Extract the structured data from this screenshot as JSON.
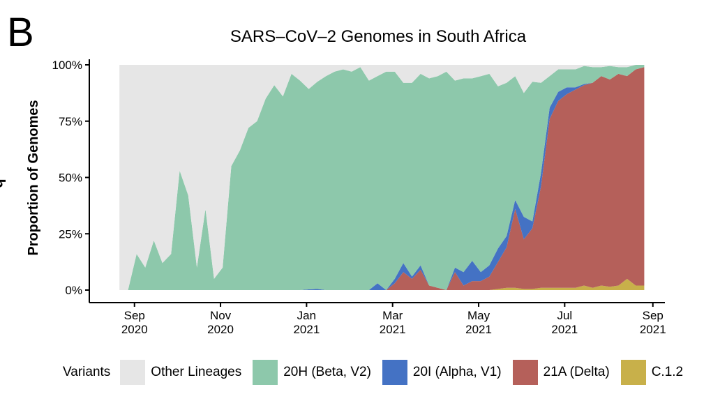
{
  "panel_label": "B",
  "edge_fragment": "q",
  "chart_data": {
    "type": "area",
    "stacked": true,
    "normalized": true,
    "title": "SARS–CoV–2 Genomes in South Africa",
    "ylabel": "Proportion of Genomes",
    "xlabel": "",
    "ylim": [
      0,
      1
    ],
    "y_ticks": [
      0,
      0.25,
      0.5,
      0.75,
      1.0
    ],
    "y_tick_labels": [
      "0%",
      "25%",
      "50%",
      "75%",
      "100%"
    ],
    "x_tick_values": [
      6.0,
      8.0,
      10.0,
      12.0,
      14.0,
      16.0
    ],
    "x_tick_labels": [
      [
        "Sep",
        "2020"
      ],
      [
        "Nov",
        "2020"
      ],
      [
        "Jan",
        "2021"
      ],
      [
        "Mar",
        "2021"
      ],
      [
        "May",
        "2021"
      ],
      [
        "Jul",
        "2021"
      ],
      [
        "Sep",
        "2021"
      ]
    ],
    "x_tick_months": [
      5.95,
      7.95,
      9.95,
      11.95,
      13.95,
      15.95,
      18.0
    ],
    "xlim": [
      4.9,
      18.15
    ],
    "x": [
      5.6,
      5.8,
      6.0,
      6.2,
      6.4,
      6.6,
      6.8,
      7.0,
      7.2,
      7.4,
      7.6,
      7.8,
      8.0,
      8.2,
      8.4,
      8.6,
      8.8,
      9.0,
      9.2,
      9.4,
      9.6,
      9.8,
      10.0,
      10.2,
      10.4,
      10.6,
      10.8,
      11.0,
      11.2,
      11.4,
      11.6,
      11.8,
      12.0,
      12.2,
      12.4,
      12.6,
      12.8,
      13.0,
      13.2,
      13.4,
      13.6,
      13.8,
      14.0,
      14.2,
      14.4,
      14.6,
      14.8,
      15.0,
      15.2,
      15.4,
      15.6,
      15.8,
      16.0,
      16.2,
      16.4,
      16.6,
      16.8,
      17.0,
      17.2,
      17.4,
      17.6,
      17.8
    ],
    "legend_title": "Variants",
    "legend_position": "bottom",
    "series": [
      {
        "name": "C.1.2",
        "color": "#c8b04a",
        "values": [
          0,
          0,
          0,
          0,
          0,
          0,
          0,
          0,
          0,
          0,
          0,
          0,
          0,
          0,
          0,
          0,
          0,
          0,
          0,
          0,
          0,
          0,
          0,
          0,
          0,
          0,
          0,
          0,
          0,
          0,
          0,
          0,
          0,
          0,
          0,
          0,
          0,
          0,
          0,
          0,
          0,
          0,
          0,
          0,
          0.005,
          0.01,
          0.01,
          0.005,
          0.005,
          0.01,
          0.01,
          0.01,
          0.01,
          0.01,
          0.02,
          0.01,
          0.02,
          0.015,
          0.02,
          0.05,
          0.02,
          0.02
        ]
      },
      {
        "name": "21A (Delta)",
        "color": "#b5605a",
        "values": [
          0,
          0,
          0,
          0,
          0,
          0,
          0,
          0,
          0,
          0,
          0,
          0,
          0,
          0,
          0,
          0,
          0,
          0,
          0,
          0,
          0,
          0,
          0,
          0,
          0,
          0,
          0,
          0,
          0,
          0,
          0,
          0,
          0.03,
          0.08,
          0.05,
          0.09,
          0.02,
          0.01,
          0,
          0.08,
          0.02,
          0.04,
          0.04,
          0.06,
          0.12,
          0.18,
          0.35,
          0.22,
          0.27,
          0.45,
          0.75,
          0.83,
          0.86,
          0.88,
          0.89,
          0.91,
          0.93,
          0.92,
          0.94,
          0.9,
          0.96,
          0.97
        ]
      },
      {
        "name": "20I (Alpha, V1)",
        "color": "#4472c4",
        "values": [
          0,
          0,
          0,
          0,
          0,
          0,
          0,
          0,
          0,
          0,
          0,
          0,
          0,
          0,
          0,
          0,
          0,
          0,
          0,
          0,
          0,
          0,
          0.003,
          0.005,
          0,
          0,
          0,
          0,
          0,
          0,
          0.03,
          0,
          0.02,
          0.04,
          0.01,
          0.02,
          0,
          0,
          0,
          0.02,
          0.06,
          0.09,
          0.04,
          0.05,
          0.06,
          0.05,
          0.04,
          0.1,
          0.03,
          0.06,
          0.05,
          0.04,
          0.03,
          0.01,
          0.005,
          0,
          0,
          0,
          0,
          0,
          0,
          0
        ]
      },
      {
        "name": "20H (Beta, V2)",
        "color": "#8dc8ab",
        "values": [
          0,
          0,
          0.16,
          0.1,
          0.22,
          0.12,
          0.16,
          0.53,
          0.42,
          0.1,
          0.36,
          0.05,
          0.1,
          0.55,
          0.62,
          0.72,
          0.75,
          0.85,
          0.91,
          0.86,
          0.96,
          0.93,
          0.89,
          0.92,
          0.95,
          0.97,
          0.98,
          0.97,
          0.99,
          0.93,
          0.92,
          0.97,
          0.92,
          0.8,
          0.86,
          0.85,
          0.92,
          0.94,
          0.97,
          0.83,
          0.86,
          0.81,
          0.87,
          0.85,
          0.72,
          0.68,
          0.55,
          0.55,
          0.62,
          0.4,
          0.14,
          0.1,
          0.08,
          0.08,
          0.08,
          0.07,
          0.04,
          0.06,
          0.03,
          0.04,
          0.02,
          0.01
        ]
      },
      {
        "name": "Other Lineages",
        "color": "#e6e6e6",
        "fill_rest": true,
        "values": [
          1,
          1,
          0.84,
          0.9,
          0.78,
          0.88,
          0.84,
          0.47,
          0.58,
          0.9,
          0.64,
          0.95,
          0.9,
          0.45,
          0.38,
          0.28,
          0.25,
          0.15,
          0.09,
          0.14,
          0.04,
          0.07,
          0.107,
          0.075,
          0.05,
          0.03,
          0.02,
          0.03,
          0.01,
          0.07,
          0.05,
          0.03,
          0.03,
          0.08,
          0.08,
          0.04,
          0.06,
          0.05,
          0.03,
          0.07,
          0.06,
          0.06,
          0.05,
          0.04,
          0.095,
          0.08,
          0.05,
          0.125,
          0.075,
          0.08,
          0.04,
          0.02,
          0.02,
          0.02,
          0.005,
          0.01,
          0.01,
          0.005,
          0.01,
          0.01,
          0.01,
          0
        ]
      }
    ],
    "legend_items": [
      {
        "label": "Other Lineages",
        "color": "#e6e6e6"
      },
      {
        "label": "20H (Beta, V2)",
        "color": "#8dc8ab"
      },
      {
        "label": "20I (Alpha, V1)",
        "color": "#4472c4"
      },
      {
        "label": "21A (Delta)",
        "color": "#b5605a"
      },
      {
        "label": "C.1.2",
        "color": "#c8b04a"
      }
    ]
  }
}
